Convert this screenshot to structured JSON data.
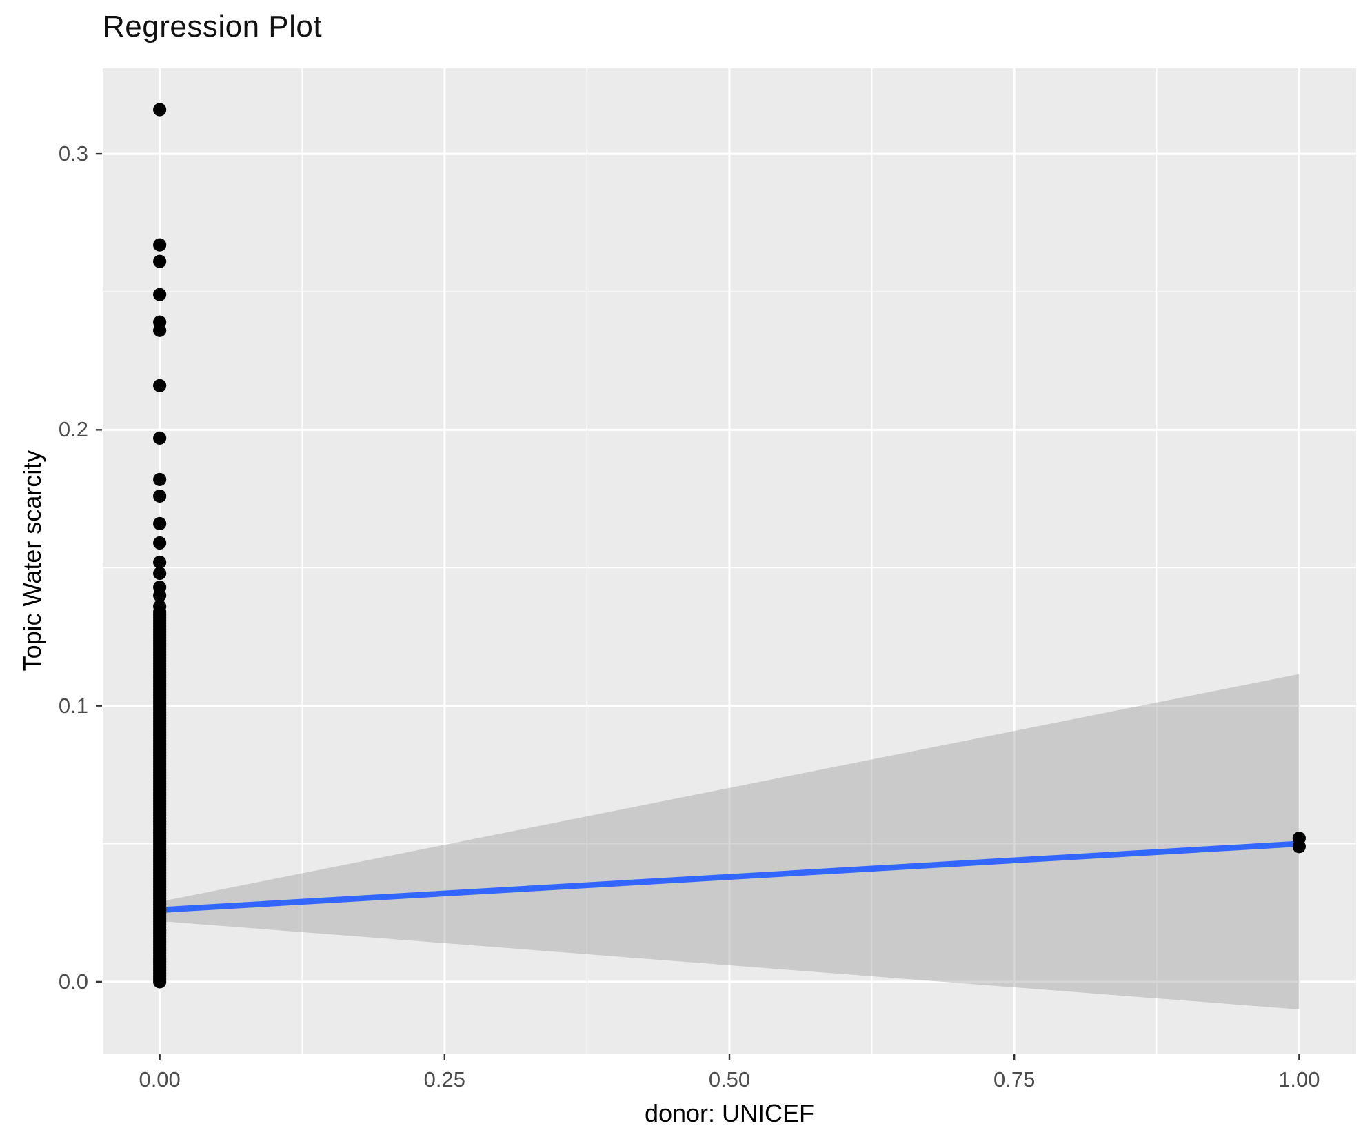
{
  "title": "Regression Plot",
  "x_axis": {
    "label": "donor: UNICEF",
    "ticks": [
      "0.00",
      "0.25",
      "0.50",
      "0.75",
      "1.00"
    ],
    "tick_values": [
      0,
      0.25,
      0.5,
      0.75,
      1
    ],
    "minor_tick_values": [
      0.125,
      0.375,
      0.625,
      0.875
    ]
  },
  "y_axis": {
    "label": "Topic Water scarcity",
    "ticks": [
      "0.0",
      "0.1",
      "0.2",
      "0.3"
    ],
    "tick_values": [
      0,
      0.1,
      0.2,
      0.3
    ],
    "minor_tick_values": [
      0.05,
      0.15,
      0.25
    ]
  },
  "chart_data": {
    "type": "scatter",
    "title": "Regression Plot",
    "xlabel": "donor: UNICEF",
    "ylabel": "Topic Water scarcity",
    "xlim": [
      -0.05,
      1.05
    ],
    "ylim": [
      -0.026,
      0.331
    ],
    "grid": true,
    "legend": false,
    "series": [
      {
        "name": "observations at x=0 (distinct upper points)",
        "x": 0,
        "y": [
          0.316,
          0.267,
          0.261,
          0.249,
          0.239,
          0.236,
          0.216,
          0.197,
          0.182,
          0.176,
          0.166,
          0.159,
          0.152,
          0.148,
          0.143,
          0.14,
          0.136
        ]
      },
      {
        "name": "observations at x=0 (dense overlapping column)",
        "x": 0,
        "y_dense_range": {
          "min": 0.0,
          "max": 0.134,
          "count": 130
        }
      },
      {
        "name": "observations at x=1",
        "x": 1,
        "y": [
          0.052,
          0.049
        ]
      }
    ],
    "regression_line": {
      "x": [
        0,
        1
      ],
      "y": [
        0.026,
        0.05
      ],
      "color": "#3366FF",
      "width": 8.5
    },
    "confidence_band": {
      "x": [
        0,
        1
      ],
      "upper": [
        0.029,
        0.1115
      ],
      "lower": [
        0.022,
        -0.01
      ],
      "fill": "#999999",
      "opacity": 0.4
    }
  },
  "colors": {
    "background": "#FFFFFF",
    "panel": "#EBEBEB",
    "gridline": "#FFFFFF",
    "point": "#000000",
    "tick_label": "#4D4D4D",
    "tick_mark": "#333333",
    "title_text": "#111111"
  }
}
